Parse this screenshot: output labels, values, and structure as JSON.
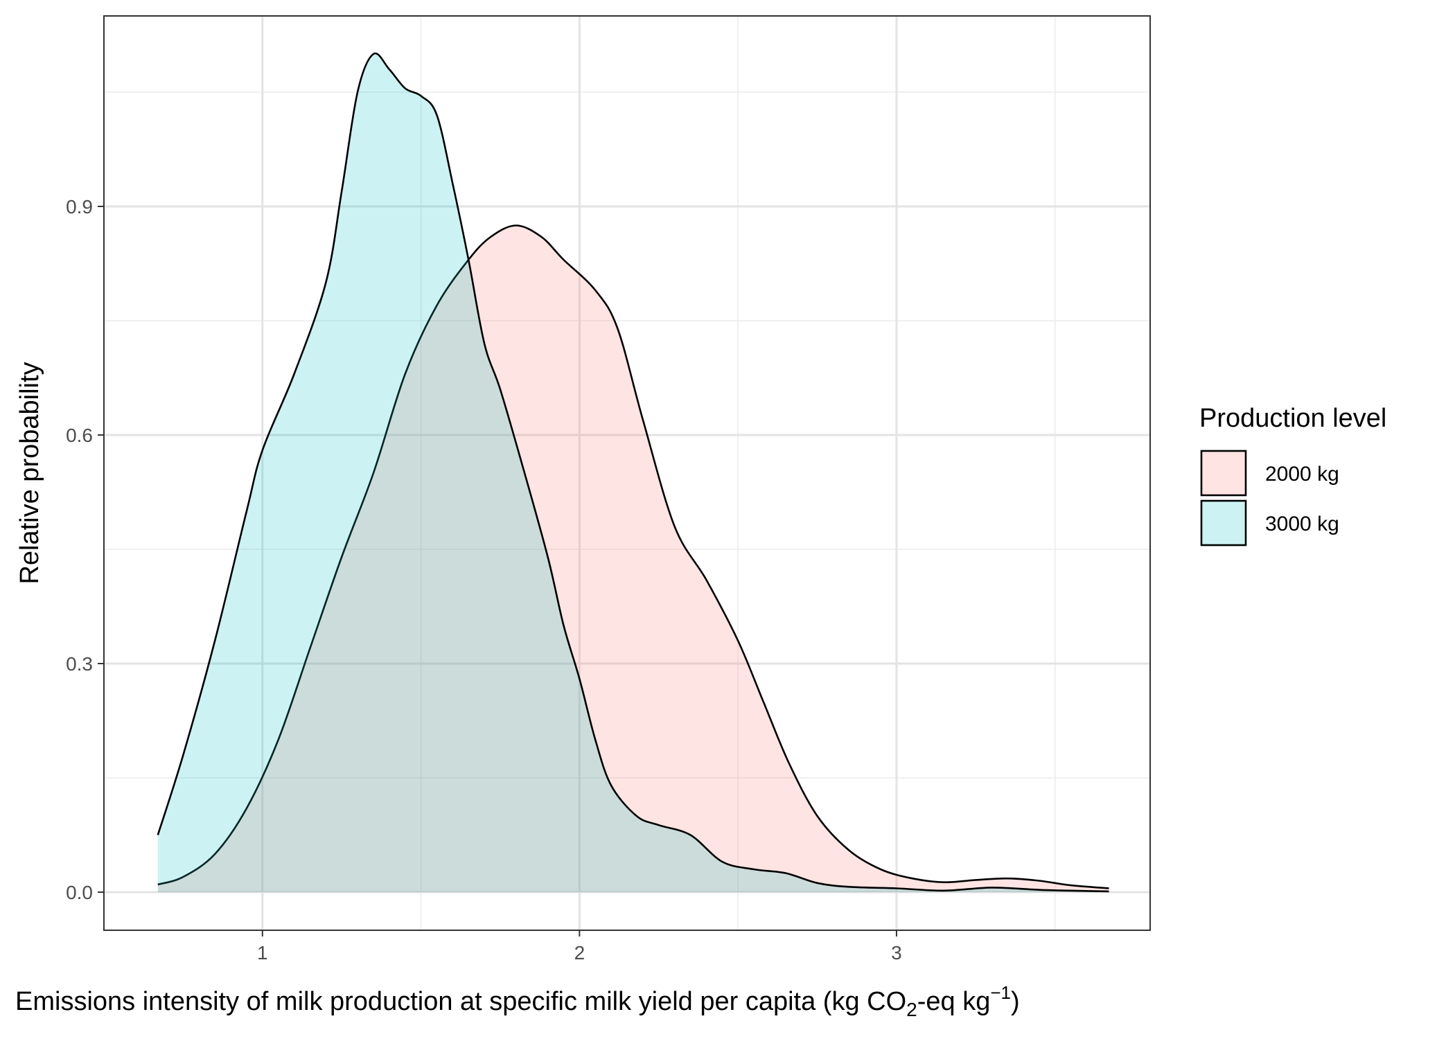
{
  "chart_data": {
    "type": "area",
    "xlabel": {
      "main": "Emissions intensity of milk production at specific milk yield per capita (kg CO",
      "sub": "2",
      "mid": "-eq kg",
      "sup": "−1",
      "end": ")"
    },
    "ylabel": "Relative probability",
    "xlim": [
      0.5,
      3.8
    ],
    "ylim": [
      -0.05,
      1.15
    ],
    "x_ticks": [
      1,
      2,
      3
    ],
    "x_tick_labels": [
      "1",
      "2",
      "3"
    ],
    "y_ticks": [
      0.0,
      0.3,
      0.6,
      0.9
    ],
    "y_tick_labels": [
      "0.0",
      "0.3",
      "0.6",
      "0.9"
    ],
    "grid": true,
    "legend": {
      "title": "Production level",
      "position": "right"
    },
    "series": [
      {
        "name": "2000 kg",
        "color": "#F8766D",
        "points": [
          [
            0.67,
            0.01
          ],
          [
            0.75,
            0.02
          ],
          [
            0.85,
            0.05
          ],
          [
            0.95,
            0.11
          ],
          [
            1.05,
            0.2
          ],
          [
            1.15,
            0.32
          ],
          [
            1.25,
            0.44
          ],
          [
            1.35,
            0.55
          ],
          [
            1.45,
            0.68
          ],
          [
            1.55,
            0.77
          ],
          [
            1.65,
            0.83
          ],
          [
            1.72,
            0.86
          ],
          [
            1.8,
            0.875
          ],
          [
            1.88,
            0.86
          ],
          [
            1.95,
            0.83
          ],
          [
            2.05,
            0.79
          ],
          [
            2.12,
            0.74
          ],
          [
            2.2,
            0.62
          ],
          [
            2.3,
            0.48
          ],
          [
            2.4,
            0.41
          ],
          [
            2.5,
            0.33
          ],
          [
            2.58,
            0.25
          ],
          [
            2.66,
            0.17
          ],
          [
            2.75,
            0.1
          ],
          [
            2.85,
            0.055
          ],
          [
            2.95,
            0.03
          ],
          [
            3.05,
            0.018
          ],
          [
            3.15,
            0.013
          ],
          [
            3.25,
            0.016
          ],
          [
            3.35,
            0.018
          ],
          [
            3.45,
            0.015
          ],
          [
            3.55,
            0.009
          ],
          [
            3.67,
            0.005
          ]
        ]
      },
      {
        "name": "3000 kg",
        "color": "#00BFC4",
        "points": [
          [
            0.67,
            0.075
          ],
          [
            0.75,
            0.18
          ],
          [
            0.85,
            0.33
          ],
          [
            0.95,
            0.5
          ],
          [
            1.0,
            0.58
          ],
          [
            1.1,
            0.68
          ],
          [
            1.2,
            0.8
          ],
          [
            1.25,
            0.92
          ],
          [
            1.3,
            1.05
          ],
          [
            1.35,
            1.1
          ],
          [
            1.4,
            1.08
          ],
          [
            1.45,
            1.055
          ],
          [
            1.5,
            1.045
          ],
          [
            1.55,
            1.02
          ],
          [
            1.6,
            0.93
          ],
          [
            1.65,
            0.83
          ],
          [
            1.7,
            0.72
          ],
          [
            1.75,
            0.66
          ],
          [
            1.82,
            0.56
          ],
          [
            1.9,
            0.44
          ],
          [
            1.95,
            0.35
          ],
          [
            2.0,
            0.28
          ],
          [
            2.05,
            0.2
          ],
          [
            2.1,
            0.14
          ],
          [
            2.18,
            0.1
          ],
          [
            2.25,
            0.088
          ],
          [
            2.35,
            0.075
          ],
          [
            2.45,
            0.04
          ],
          [
            2.55,
            0.03
          ],
          [
            2.65,
            0.025
          ],
          [
            2.75,
            0.012
          ],
          [
            2.85,
            0.007
          ],
          [
            3.0,
            0.005
          ],
          [
            3.15,
            0.002
          ],
          [
            3.3,
            0.006
          ],
          [
            3.45,
            0.003
          ],
          [
            3.55,
            0.002
          ],
          [
            3.67,
            0.001
          ]
        ]
      }
    ]
  }
}
